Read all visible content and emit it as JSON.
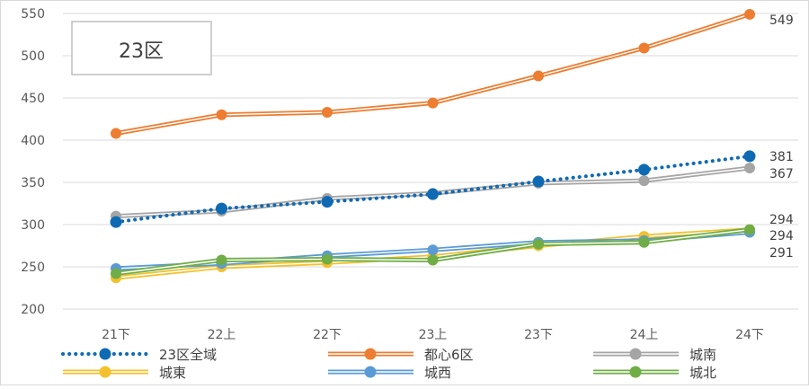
{
  "chart_data": {
    "type": "line",
    "title": "23区",
    "categories": [
      "21下",
      "22上",
      "22下",
      "23上",
      "23下",
      "24上",
      "24下"
    ],
    "ylim": [
      200,
      550
    ],
    "yticks": [
      200,
      250,
      300,
      350,
      400,
      450,
      500,
      550
    ],
    "grid": true,
    "legend_position": "bottom",
    "series": [
      {
        "name": "23区全域",
        "values": [
          303,
          319,
          327,
          336,
          351,
          365,
          381
        ],
        "color": "#0f6ab4",
        "style": "dotted"
      },
      {
        "name": "都心6区",
        "values": [
          408,
          430,
          433,
          444,
          476,
          509,
          549
        ],
        "color": "#ed7d31",
        "style": "double"
      },
      {
        "name": "城南",
        "values": [
          310,
          316,
          331,
          337,
          349,
          352,
          367
        ],
        "color": "#a5a5a5",
        "style": "double"
      },
      {
        "name": "城東",
        "values": [
          237,
          250,
          255,
          262,
          275,
          286,
          294
        ],
        "color": "#f2c12e",
        "style": "double"
      },
      {
        "name": "城西",
        "values": [
          248,
          254,
          263,
          270,
          279,
          281,
          291
        ],
        "color": "#5b9bd5",
        "style": "double"
      },
      {
        "name": "城北",
        "values": [
          242,
          258,
          259,
          258,
          277,
          279,
          294
        ],
        "color": "#70ad47",
        "style": "double"
      }
    ],
    "end_labels": [
      "549",
      "381",
      "367",
      "294",
      "294",
      "291"
    ]
  }
}
